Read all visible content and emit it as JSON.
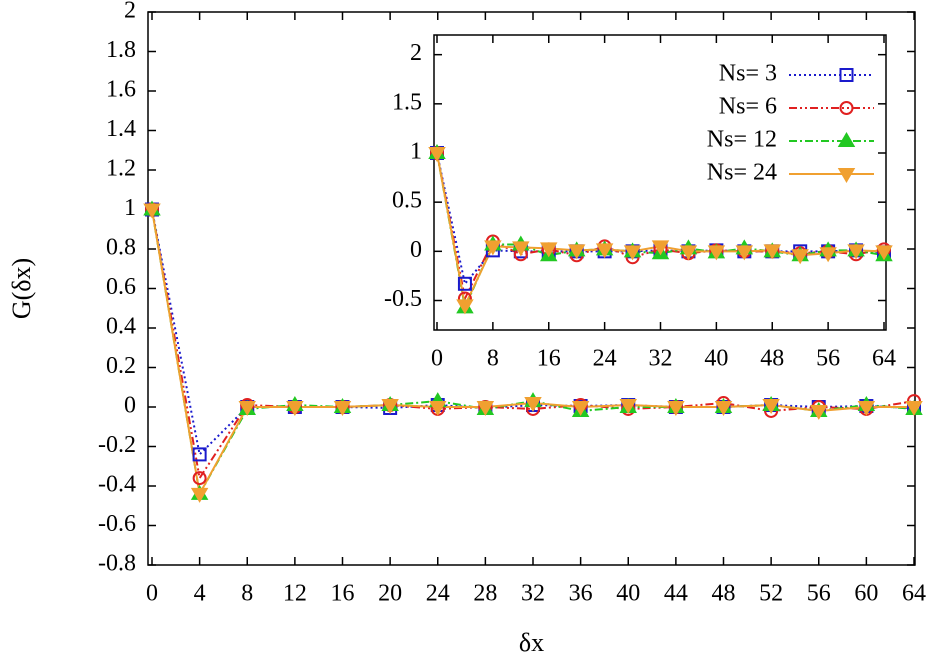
{
  "chart_data": [
    {
      "type": "line",
      "xlabel": "δx",
      "ylabel": "G(δx)",
      "x": [
        0,
        4,
        8,
        12,
        16,
        20,
        24,
        28,
        32,
        36,
        40,
        44,
        48,
        52,
        56,
        60,
        64
      ],
      "xlim": [
        0,
        64
      ],
      "xticks": [
        0,
        4,
        8,
        12,
        16,
        20,
        24,
        28,
        32,
        36,
        40,
        44,
        48,
        52,
        56,
        60,
        64
      ],
      "ylim": [
        -0.8,
        2
      ],
      "yticks": [
        -0.8,
        -0.6,
        -0.4,
        -0.2,
        0,
        0.2,
        0.4,
        0.6,
        0.8,
        1,
        1.2,
        1.4,
        1.6,
        1.8,
        2
      ],
      "series": [
        {
          "color": "#1a1acc",
          "marker": "square",
          "linestyle": "dotted",
          "values": [
            1,
            -0.24,
            0,
            0,
            0,
            -0.005,
            0.01,
            -0.005,
            0.01,
            0.005,
            0.01,
            0,
            0,
            0.01,
            0,
            0.005,
            -0.005
          ]
        },
        {
          "color": "#e02020",
          "marker": "circle",
          "linestyle": "dashdotdot",
          "values": [
            1,
            -0.36,
            0.01,
            0,
            0,
            0.01,
            -0.01,
            0,
            -0.01,
            0.01,
            -0.01,
            0,
            0.02,
            -0.02,
            0,
            -0.01,
            0.03
          ]
        },
        {
          "color": "#22c822",
          "marker": "triangle",
          "linestyle": "dashdot",
          "values": [
            1,
            -0.44,
            -0.01,
            0.01,
            0,
            0.01,
            0.03,
            -0.01,
            0.03,
            -0.02,
            0,
            0,
            0,
            0.01,
            -0.02,
            0.01,
            -0.01
          ]
        },
        {
          "color": "#f0a030",
          "marker": "triangle-down",
          "linestyle": "solid",
          "values": [
            1,
            -0.44,
            0,
            0,
            0,
            0.01,
            0,
            0,
            0.02,
            0,
            0.01,
            0,
            0,
            0.01,
            -0.02,
            0,
            0
          ]
        }
      ]
    },
    {
      "type": "line",
      "legend": "top-right",
      "x": [
        0,
        4,
        8,
        12,
        16,
        20,
        24,
        28,
        32,
        36,
        40,
        44,
        48,
        52,
        56,
        60,
        64
      ],
      "xlim": [
        0,
        64
      ],
      "xticks": [
        0,
        8,
        16,
        24,
        32,
        40,
        48,
        56,
        64
      ],
      "ylim": [
        -0.8,
        2.2
      ],
      "yticks": [
        -0.5,
        0,
        0.5,
        1,
        1.5,
        2
      ],
      "series": [
        {
          "name": "Ns= 3",
          "color": "#1a1acc",
          "marker": "square",
          "linestyle": "dotted",
          "values": [
            1,
            -0.33,
            0.01,
            0,
            0,
            0,
            0,
            0,
            0.01,
            0,
            0.01,
            0,
            0,
            0,
            0,
            0.01,
            -0.01
          ]
        },
        {
          "name": "Ns= 6",
          "color": "#e02020",
          "marker": "circle",
          "linestyle": "dashdotdot",
          "values": [
            1,
            -0.48,
            0.1,
            -0.03,
            0.02,
            -0.04,
            0.05,
            -0.06,
            0.02,
            -0.02,
            0.01,
            0,
            0,
            -0.02,
            0,
            -0.03,
            0.02
          ]
        },
        {
          "name": "Ns= 12",
          "color": "#22c822",
          "marker": "triangle",
          "linestyle": "dashdot",
          "values": [
            1,
            -0.57,
            0.07,
            0.07,
            -0.04,
            0.01,
            0.02,
            0,
            -0.02,
            0.03,
            -0.01,
            0.03,
            0,
            -0.04,
            0.01,
            0.01,
            -0.04
          ]
        },
        {
          "name": "Ns= 24",
          "color": "#f0a030",
          "marker": "triangle-down",
          "linestyle": "solid",
          "values": [
            1,
            -0.55,
            0.05,
            0.04,
            0.03,
            0.01,
            0.02,
            0,
            0.05,
            0,
            0,
            0,
            0.01,
            -0.04,
            -0.02,
            0.01,
            0
          ]
        }
      ]
    }
  ]
}
